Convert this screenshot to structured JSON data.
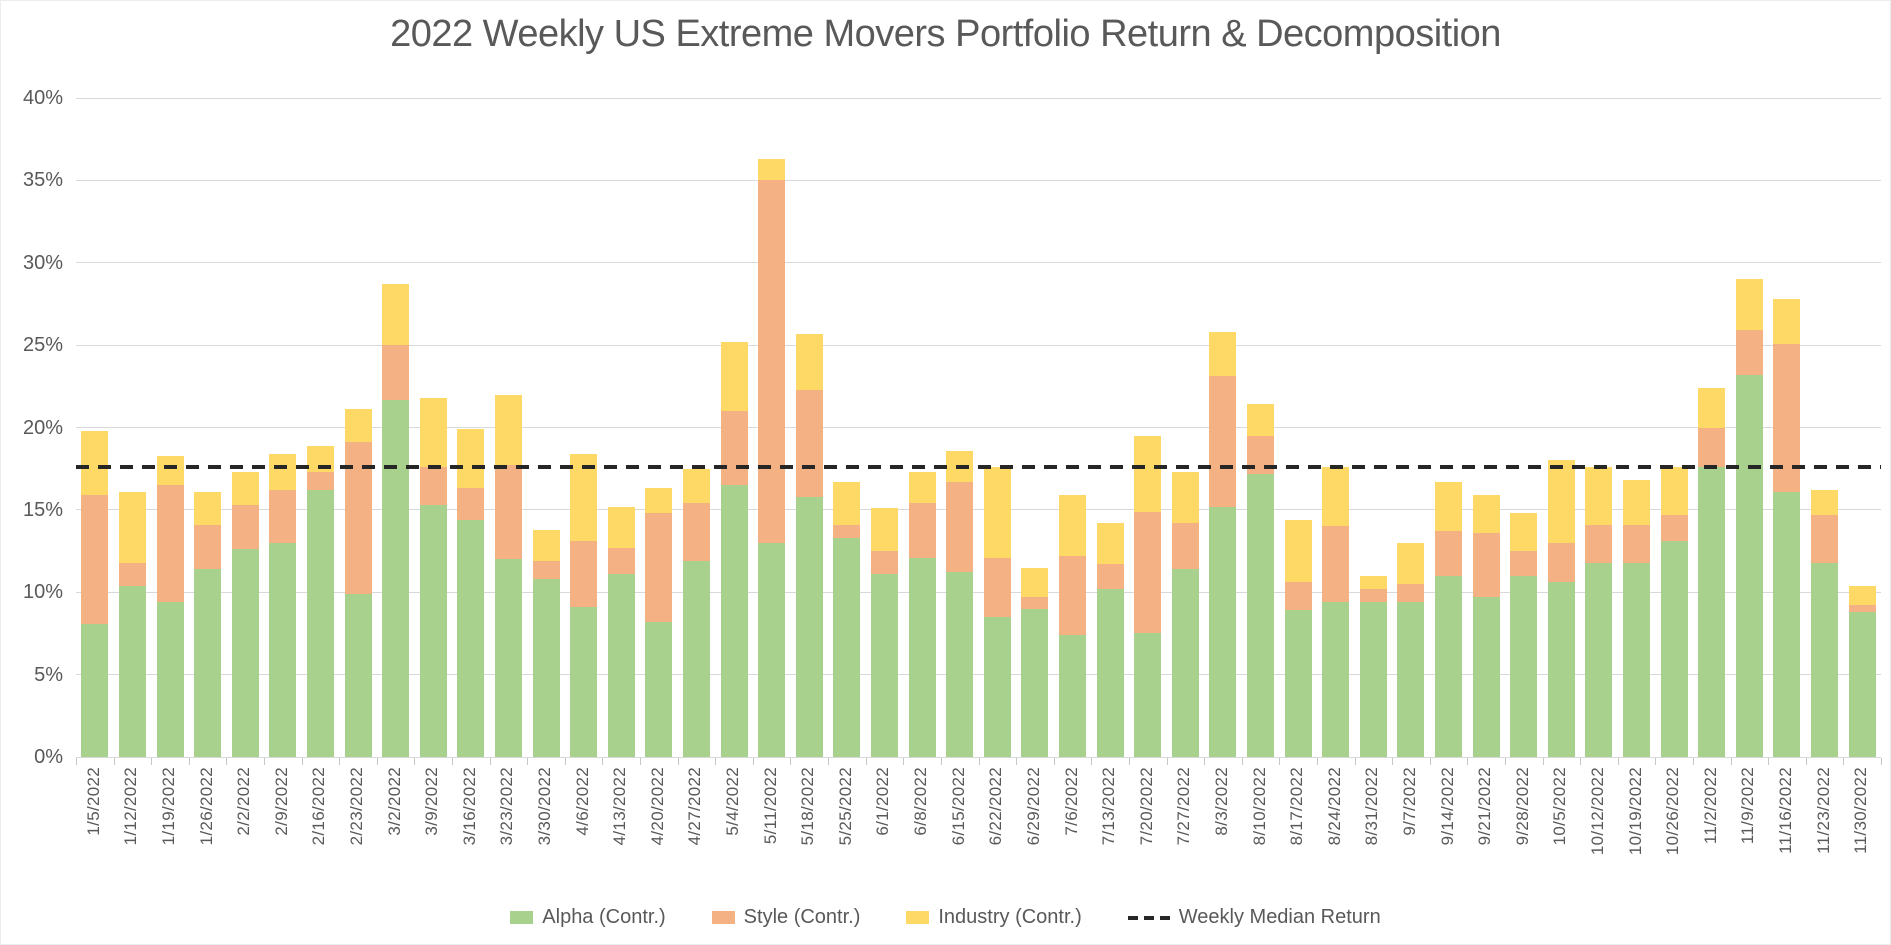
{
  "title": "2022 Weekly US Extreme Movers Portfolio Return & Decomposition",
  "y_axis": {
    "tick_labels": [
      "0%",
      "5%",
      "10%",
      "15%",
      "20%",
      "25%",
      "30%",
      "35%",
      "40%"
    ],
    "min": 0,
    "max": 40,
    "step": 5
  },
  "legend": [
    {
      "label": "Alpha (Contr.)",
      "type": "swatch",
      "color": "#a9d18e"
    },
    {
      "label": "Style (Contr.)",
      "type": "swatch",
      "color": "#f4b183"
    },
    {
      "label": "Industry (Contr.)",
      "type": "swatch",
      "color": "#ffd966"
    },
    {
      "label": "Weekly Median Return",
      "type": "dash",
      "color": "#262626"
    }
  ],
  "chart_data": {
    "type": "bar",
    "stacked": true,
    "title": "2022 Weekly US Extreme Movers Portfolio Return & Decomposition",
    "xlabel": "",
    "ylabel": "",
    "ylim": [
      0,
      40
    ],
    "y_unit": "%",
    "grid": "horizontal",
    "legend_position": "bottom",
    "median_line": {
      "label": "Weekly Median Return",
      "value": 17.6,
      "style": "dashed",
      "color": "#262626"
    },
    "categories": [
      "1/5/2022",
      "1/12/2022",
      "1/19/2022",
      "1/26/2022",
      "2/2/2022",
      "2/9/2022",
      "2/16/2022",
      "2/23/2022",
      "3/2/2022",
      "3/9/2022",
      "3/16/2022",
      "3/23/2022",
      "3/30/2022",
      "4/6/2022",
      "4/13/2022",
      "4/20/2022",
      "4/27/2022",
      "5/4/2022",
      "5/11/2022",
      "5/18/2022",
      "5/25/2022",
      "6/1/2022",
      "6/8/2022",
      "6/15/2022",
      "6/22/2022",
      "6/29/2022",
      "7/6/2022",
      "7/13/2022",
      "7/20/2022",
      "7/27/2022",
      "8/3/2022",
      "8/10/2022",
      "8/17/2022",
      "8/24/2022",
      "8/31/2022",
      "9/7/2022",
      "9/14/2022",
      "9/21/2022",
      "9/28/2022",
      "10/5/2022",
      "10/12/2022",
      "10/19/2022",
      "10/26/2022",
      "11/2/2022",
      "11/9/2022",
      "11/16/2022",
      "11/23/2022",
      "11/30/2022"
    ],
    "series": [
      {
        "name": "Alpha (Contr.)",
        "color": "#a9d18e",
        "values": [
          8.1,
          10.4,
          9.4,
          11.4,
          12.6,
          13.0,
          16.2,
          9.9,
          21.7,
          15.3,
          14.4,
          12.0,
          10.8,
          9.1,
          11.1,
          8.2,
          11.9,
          16.5,
          13.0,
          15.8,
          13.3,
          11.1,
          12.1,
          11.2,
          8.5,
          9.0,
          7.4,
          10.2,
          7.5,
          11.4,
          15.2,
          17.2,
          8.9,
          9.4,
          9.4,
          9.4,
          11.0,
          9.7,
          11.0,
          10.6,
          11.8,
          11.8,
          13.1,
          17.6,
          23.2,
          16.1,
          11.8,
          8.8
        ]
      },
      {
        "name": "Style (Contr.)",
        "color": "#f4b183",
        "values": [
          7.8,
          1.4,
          7.1,
          2.7,
          2.7,
          3.2,
          1.1,
          9.2,
          3.3,
          2.3,
          1.9,
          5.7,
          1.1,
          4.0,
          1.6,
          6.6,
          3.5,
          4.5,
          22.0,
          6.5,
          0.8,
          1.4,
          3.3,
          5.5,
          3.6,
          0.7,
          4.8,
          1.5,
          7.4,
          2.8,
          7.9,
          2.3,
          1.7,
          4.6,
          0.8,
          1.1,
          2.7,
          3.9,
          1.5,
          2.4,
          2.3,
          2.3,
          1.6,
          2.4,
          2.7,
          9.0,
          2.9,
          0.4
        ]
      },
      {
        "name": "Industry (Contr.)",
        "color": "#ffd966",
        "values": [
          3.9,
          4.3,
          1.8,
          2.0,
          2.0,
          2.2,
          1.6,
          2.0,
          3.7,
          4.2,
          3.6,
          4.3,
          1.9,
          5.3,
          2.5,
          1.5,
          2.1,
          4.2,
          1.3,
          3.4,
          2.6,
          2.6,
          1.9,
          1.9,
          5.5,
          1.8,
          3.7,
          2.5,
          4.6,
          3.1,
          2.7,
          1.9,
          3.8,
          3.6,
          0.8,
          2.5,
          3.0,
          2.3,
          2.3,
          5.0,
          3.5,
          2.7,
          2.9,
          2.4,
          3.1,
          2.7,
          1.5,
          1.2
        ]
      }
    ]
  },
  "colors": {
    "title_text": "#595959",
    "axis_text": "#595959",
    "gridline": "#d9d9d9",
    "median_dash": "#262626",
    "background": "#ffffff"
  }
}
